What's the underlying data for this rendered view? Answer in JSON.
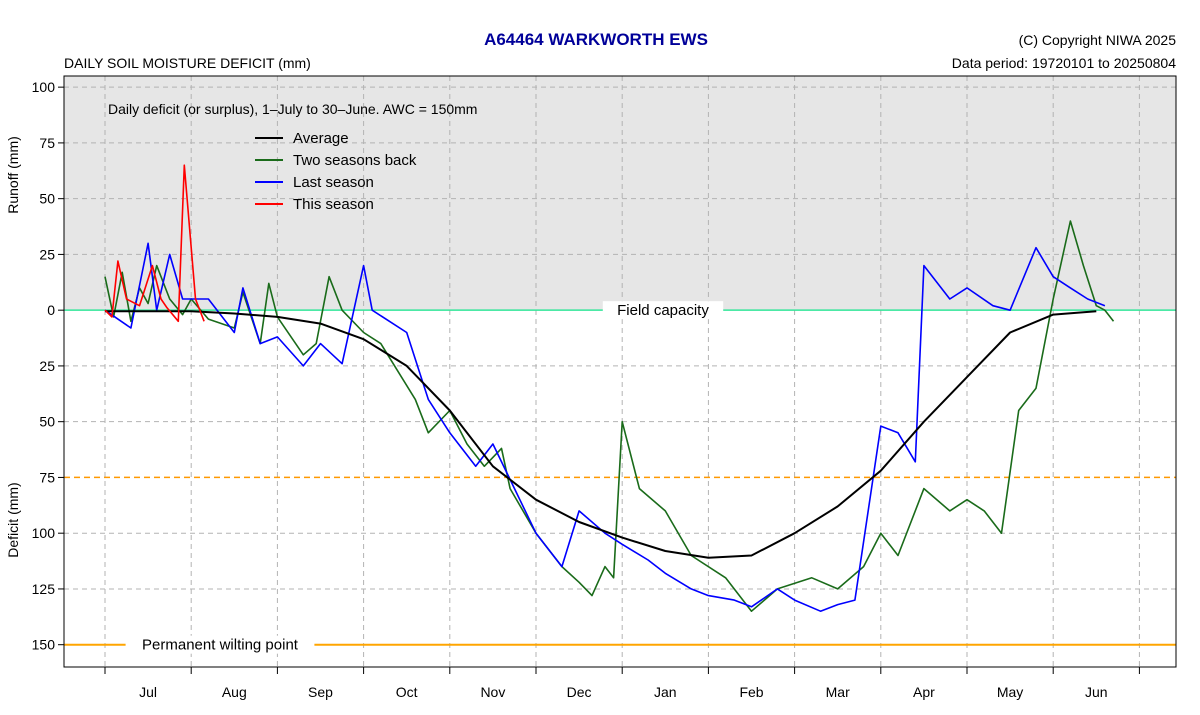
{
  "header": {
    "title": "A64464  WARKWORTH EWS",
    "subtitle": "DAILY SOIL MOISTURE DEFICIT (mm)",
    "copyright": "(C) Copyright NIWA  2025",
    "data_period": "Data period:  19720101  to  20250804"
  },
  "colors": {
    "average": "#000000",
    "two_seasons_back": "#1a6b1a",
    "last_season": "#0000ff",
    "this_season": "#ff0000",
    "field_capacity": "#33e699",
    "stress_line": "#ff9900",
    "wilting_point": "#ffa500",
    "runoff_band": "#e6e6e6",
    "grid": "#b3b3b3",
    "title": "#000099"
  },
  "chart_data": {
    "type": "line",
    "annotation": "Daily deficit (or surplus), 1–July to 30–June.  AWC = 150mm",
    "ylabel_top": "Runoff (mm)",
    "ylabel_bottom": "Deficit (mm)",
    "ylim": [
      -105,
      160
    ],
    "y_ticks": [
      {
        "v": -100,
        "label": "100"
      },
      {
        "v": -75,
        "label": "75"
      },
      {
        "v": -50,
        "label": "50"
      },
      {
        "v": -25,
        "label": "25"
      },
      {
        "v": 0,
        "label": "0"
      },
      {
        "v": 25,
        "label": "25"
      },
      {
        "v": 50,
        "label": "50"
      },
      {
        "v": 75,
        "label": "75"
      },
      {
        "v": 100,
        "label": "100"
      },
      {
        "v": 125,
        "label": "125"
      },
      {
        "v": 150,
        "label": "150"
      }
    ],
    "months": [
      "Jul",
      "Aug",
      "Sep",
      "Oct",
      "Nov",
      "Dec",
      "Jan",
      "Feb",
      "Mar",
      "Apr",
      "May",
      "Jun"
    ],
    "reference_lines": [
      {
        "name": "Field capacity",
        "value": 0
      },
      {
        "name": "",
        "value": 75
      },
      {
        "name": "Permanent wilting point",
        "value": 150
      }
    ],
    "legend_position": "top-left",
    "grid": true,
    "series": [
      {
        "name": "Average",
        "key": "average",
        "points": [
          [
            0,
            0.5
          ],
          [
            1,
            0.5
          ],
          [
            1.5,
            1.5
          ],
          [
            2,
            3
          ],
          [
            2.5,
            6
          ],
          [
            3,
            13
          ],
          [
            3.5,
            25
          ],
          [
            4,
            45
          ],
          [
            4.5,
            70
          ],
          [
            5,
            85
          ],
          [
            5.5,
            95
          ],
          [
            6,
            102
          ],
          [
            6.5,
            108
          ],
          [
            7,
            111
          ],
          [
            7.5,
            110
          ],
          [
            8,
            100
          ],
          [
            8.5,
            88
          ],
          [
            9,
            72
          ],
          [
            9.5,
            50
          ],
          [
            10,
            30
          ],
          [
            10.5,
            10
          ],
          [
            11,
            2
          ],
          [
            11.5,
            0.5
          ]
        ]
      },
      {
        "name": "Two seasons back",
        "key": "two_seasons_back",
        "points": [
          [
            0,
            -15
          ],
          [
            0.1,
            3
          ],
          [
            0.2,
            -17
          ],
          [
            0.3,
            5
          ],
          [
            0.4,
            -10
          ],
          [
            0.5,
            -3
          ],
          [
            0.6,
            -20
          ],
          [
            0.75,
            -5
          ],
          [
            0.9,
            2
          ],
          [
            1,
            -5
          ],
          [
            1.2,
            4
          ],
          [
            1.5,
            8
          ],
          [
            1.6,
            -8
          ],
          [
            1.8,
            15
          ],
          [
            1.9,
            -12
          ],
          [
            2,
            3
          ],
          [
            2.3,
            20
          ],
          [
            2.45,
            15
          ],
          [
            2.6,
            -15
          ],
          [
            2.75,
            0
          ],
          [
            3,
            10
          ],
          [
            3.2,
            15
          ],
          [
            3.6,
            40
          ],
          [
            3.75,
            55
          ],
          [
            4,
            45
          ],
          [
            4.2,
            60
          ],
          [
            4.4,
            70
          ],
          [
            4.6,
            62
          ],
          [
            4.7,
            80
          ],
          [
            5,
            100
          ],
          [
            5.3,
            115
          ],
          [
            5.5,
            122
          ],
          [
            5.65,
            128
          ],
          [
            5.8,
            115
          ],
          [
            5.9,
            120
          ],
          [
            6,
            50
          ],
          [
            6.2,
            80
          ],
          [
            6.5,
            90
          ],
          [
            6.8,
            110
          ],
          [
            7.2,
            120
          ],
          [
            7.5,
            135
          ],
          [
            7.8,
            125
          ],
          [
            8.2,
            120
          ],
          [
            8.5,
            125
          ],
          [
            8.8,
            115
          ],
          [
            9,
            100
          ],
          [
            9.2,
            110
          ],
          [
            9.5,
            80
          ],
          [
            9.8,
            90
          ],
          [
            10,
            85
          ],
          [
            10.2,
            90
          ],
          [
            10.4,
            100
          ],
          [
            10.6,
            45
          ],
          [
            10.8,
            35
          ],
          [
            11,
            -5
          ],
          [
            11.2,
            -40
          ],
          [
            11.35,
            -20
          ],
          [
            11.5,
            -2
          ],
          [
            11.6,
            0
          ],
          [
            11.7,
            5
          ]
        ]
      },
      {
        "name": "Last season",
        "key": "last_season",
        "points": [
          [
            0,
            0
          ],
          [
            0.3,
            8
          ],
          [
            0.5,
            -30
          ],
          [
            0.6,
            0
          ],
          [
            0.75,
            -25
          ],
          [
            0.9,
            -5
          ],
          [
            1.2,
            -5
          ],
          [
            1.5,
            10
          ],
          [
            1.6,
            -10
          ],
          [
            1.8,
            15
          ],
          [
            2,
            12
          ],
          [
            2.3,
            25
          ],
          [
            2.5,
            15
          ],
          [
            2.75,
            24
          ],
          [
            3,
            -20
          ],
          [
            3.1,
            0
          ],
          [
            3.5,
            10
          ],
          [
            3.75,
            40
          ],
          [
            4,
            55
          ],
          [
            4.3,
            70
          ],
          [
            4.5,
            60
          ],
          [
            4.75,
            80
          ],
          [
            5,
            100
          ],
          [
            5.3,
            115
          ],
          [
            5.5,
            90
          ],
          [
            5.8,
            100
          ],
          [
            6,
            105
          ],
          [
            6.3,
            112
          ],
          [
            6.5,
            118
          ],
          [
            6.8,
            125
          ],
          [
            7,
            128
          ],
          [
            7.3,
            130
          ],
          [
            7.5,
            133
          ],
          [
            7.8,
            125
          ],
          [
            8,
            130
          ],
          [
            8.3,
            135
          ],
          [
            8.5,
            132
          ],
          [
            8.7,
            130
          ],
          [
            9,
            52
          ],
          [
            9.2,
            55
          ],
          [
            9.4,
            68
          ],
          [
            9.5,
            -20
          ],
          [
            9.8,
            -5
          ],
          [
            10,
            -10
          ],
          [
            10.3,
            -2
          ],
          [
            10.5,
            0
          ],
          [
            10.8,
            -28
          ],
          [
            11,
            -15
          ],
          [
            11.2,
            -10
          ],
          [
            11.4,
            -5
          ],
          [
            11.6,
            -2
          ]
        ]
      },
      {
        "name": "This season",
        "key": "this_season",
        "points": [
          [
            0,
            0
          ],
          [
            0.08,
            3
          ],
          [
            0.15,
            -22
          ],
          [
            0.25,
            -5
          ],
          [
            0.4,
            -2
          ],
          [
            0.55,
            -20
          ],
          [
            0.65,
            -5
          ],
          [
            0.72,
            -1
          ],
          [
            0.85,
            5
          ],
          [
            0.92,
            -65
          ],
          [
            1.05,
            -5
          ],
          [
            1.15,
            5
          ]
        ]
      }
    ]
  }
}
